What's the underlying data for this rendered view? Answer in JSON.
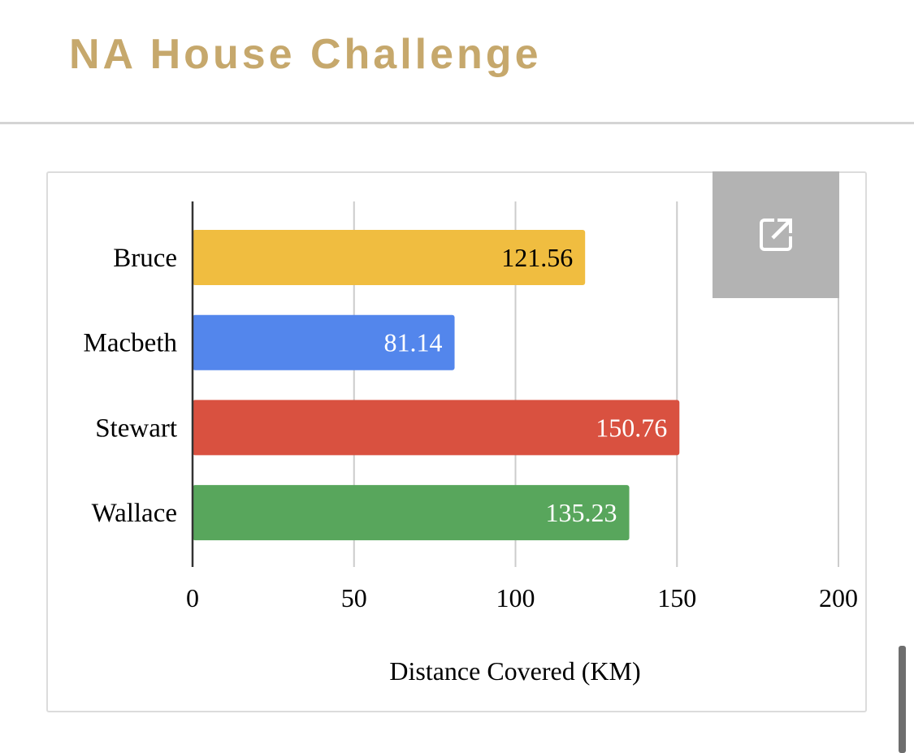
{
  "page": {
    "title": "NA House Challenge"
  },
  "icons": {
    "open_in_new": "open-in-new-icon"
  },
  "chart_data": {
    "type": "bar",
    "orientation": "horizontal",
    "categories": [
      "Bruce",
      "Macbeth",
      "Stewart",
      "Wallace"
    ],
    "values": [
      121.56,
      81.14,
      150.76,
      135.23
    ],
    "value_labels": [
      "121.56",
      "81.14",
      "150.76",
      "135.23"
    ],
    "colors": [
      "#f0bd40",
      "#5386ec",
      "#d95140",
      "#58a65c"
    ],
    "label_colors": [
      "#000000",
      "#ffffff",
      "#ffffff",
      "#ffffff"
    ],
    "title": "",
    "xlabel": "Distance Covered (KM)",
    "ylabel": "",
    "xlim": [
      0,
      200
    ],
    "xticks": [
      0,
      50,
      100,
      150,
      200
    ],
    "grid": true,
    "legend": "none"
  },
  "colors": {
    "title": "#c6a86c",
    "grid": "#cccccc",
    "axis": "#333333",
    "button_bg": "#b3b3b3"
  }
}
